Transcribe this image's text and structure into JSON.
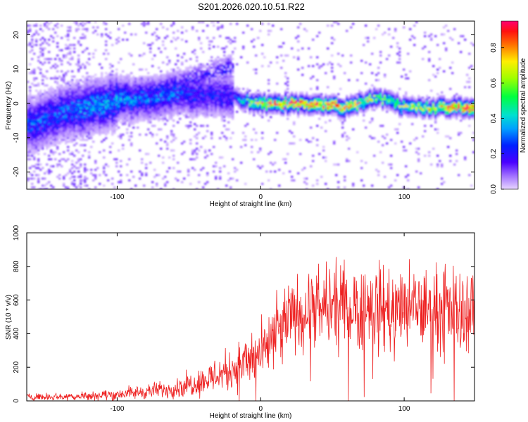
{
  "figure_title": "S201.2026.020.10.51.R22",
  "chart_data": [
    {
      "type": "heatmap",
      "xlabel": "Height of straight line (km)",
      "ylabel": "Frequency (Hz)",
      "xlim": [
        -163,
        149
      ],
      "ylim": [
        -25,
        24
      ],
      "xticks": [
        -100,
        0,
        100
      ],
      "yticks": [
        20,
        10,
        0,
        -10,
        -20
      ],
      "colorbar": {
        "label": "Normalized spectral amplitude",
        "range": [
          0,
          0.95
        ],
        "ticks": [
          0.0,
          0.2,
          0.4,
          0.6,
          0.8
        ]
      },
      "description_points": {
        "ridge_height_km": [
          -160,
          -140,
          -120,
          -100,
          -80,
          -60,
          -40,
          -20,
          0,
          20,
          40,
          60,
          80,
          100,
          120,
          140
        ],
        "ridge_frequency_hz": [
          -6,
          -3,
          -1,
          1,
          2,
          3,
          3,
          2,
          0,
          0,
          0,
          -1,
          2,
          -1,
          -1,
          -1
        ],
        "ridge_amplitude": [
          0.25,
          0.25,
          0.3,
          0.3,
          0.25,
          0.25,
          0.2,
          0.2,
          0.7,
          0.8,
          0.75,
          0.8,
          0.5,
          0.55,
          0.6,
          0.85
        ]
      }
    },
    {
      "type": "line",
      "xlabel": "Height of straight line (km)",
      "ylabel": "SNR (10 * v/v)",
      "xlim": [
        -163,
        149
      ],
      "ylim": [
        0,
        1000
      ],
      "xticks": [
        -100,
        0,
        100
      ],
      "yticks": [
        0,
        200,
        400,
        600,
        800,
        1000
      ],
      "color": "#ee2222",
      "envelope": {
        "x": [
          -163,
          -140,
          -120,
          -100,
          -80,
          -60,
          -40,
          -20,
          0,
          10,
          20,
          40,
          60,
          80,
          100,
          120,
          140,
          149
        ],
        "y_mean": [
          25,
          25,
          30,
          40,
          55,
          75,
          120,
          190,
          270,
          390,
          500,
          540,
          560,
          560,
          540,
          550,
          540,
          540
        ],
        "y_spread": [
          18,
          20,
          25,
          30,
          40,
          50,
          80,
          120,
          160,
          180,
          190,
          220,
          230,
          240,
          230,
          220,
          220,
          220
        ]
      }
    }
  ]
}
